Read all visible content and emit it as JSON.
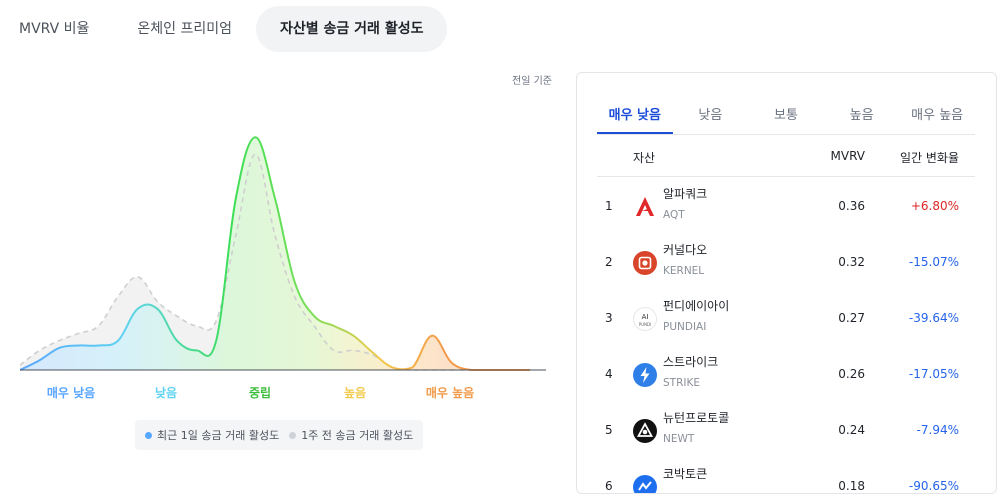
{
  "tabs": [
    {
      "label": "MVRV 비율"
    },
    {
      "label": "온체인 프리미엄"
    },
    {
      "label": "자산별 송금 거래 활성도"
    }
  ],
  "basis_label": "전일 기준",
  "chart_data": {
    "type": "area",
    "title": "",
    "xlabel": "",
    "ylabel": "",
    "categories": [
      "매우 낮음",
      "낮음",
      "중립",
      "높음",
      "매우 높음"
    ],
    "category_colors": [
      "#58a6ff",
      "#5fd3f0",
      "#3dbf3d",
      "#f2c94c",
      "#f2994a"
    ],
    "x": [
      0,
      1,
      2,
      3,
      4,
      5,
      6,
      7,
      8,
      9,
      10,
      11,
      12,
      13,
      14,
      15,
      16,
      17,
      18,
      19,
      20,
      21,
      22,
      23,
      24,
      25,
      26
    ],
    "series": [
      {
        "name": "최근 1일 송금 거래 활성도",
        "values": [
          0,
          4,
          9,
          10,
          10,
          12,
          25,
          25,
          12,
          8,
          12,
          70,
          95,
          70,
          36,
          22,
          18,
          14,
          7,
          1,
          1,
          14,
          3,
          0,
          0,
          0,
          0
        ]
      },
      {
        "name": "1주 전 송금 거래 활성도",
        "values": [
          2,
          8,
          12,
          15,
          18,
          30,
          38,
          28,
          22,
          18,
          20,
          55,
          88,
          55,
          30,
          18,
          8,
          8,
          6,
          1,
          0,
          0,
          0,
          0,
          0,
          0,
          0
        ]
      }
    ],
    "ylim": [
      0,
      100
    ],
    "grid": false,
    "legend_position": "bottom"
  },
  "legend": [
    {
      "label": "최근 1일 송금 거래 활성도",
      "color": "#58a6ff"
    },
    {
      "label": "1주 전 송금 거래 활성도",
      "color": "#cfd3d8"
    }
  ],
  "panel": {
    "tabs": [
      {
        "label": "매우 낮음"
      },
      {
        "label": "낮음"
      },
      {
        "label": "보통"
      },
      {
        "label": "높음"
      },
      {
        "label": "매우 높음"
      }
    ],
    "headers": {
      "asset": "자산",
      "mvrv": "MVRV",
      "change": "일간 변화율"
    },
    "rows": [
      {
        "rank": "1",
        "name": "알파쿼크",
        "symbol": "AQT",
        "mvrv": "0.36",
        "change": "+6.80%",
        "icon": "aqt-icon"
      },
      {
        "rank": "2",
        "name": "커널다오",
        "symbol": "KERNEL",
        "mvrv": "0.32",
        "change": "-15.07%",
        "icon": "kernel-icon"
      },
      {
        "rank": "3",
        "name": "펀디에이아이",
        "symbol": "PUNDIAI",
        "mvrv": "0.27",
        "change": "-39.64%",
        "icon": "pundiai-icon"
      },
      {
        "rank": "4",
        "name": "스트라이크",
        "symbol": "STRIKE",
        "mvrv": "0.26",
        "change": "-17.05%",
        "icon": "strike-icon"
      },
      {
        "rank": "5",
        "name": "뉴턴프로토콜",
        "symbol": "NEWT",
        "mvrv": "0.24",
        "change": "-7.94%",
        "icon": "newt-icon"
      },
      {
        "rank": "6",
        "name": "코박토큰",
        "symbol": "",
        "mvrv": "0.18",
        "change": "-90.65%",
        "icon": "cbk-icon"
      }
    ]
  }
}
